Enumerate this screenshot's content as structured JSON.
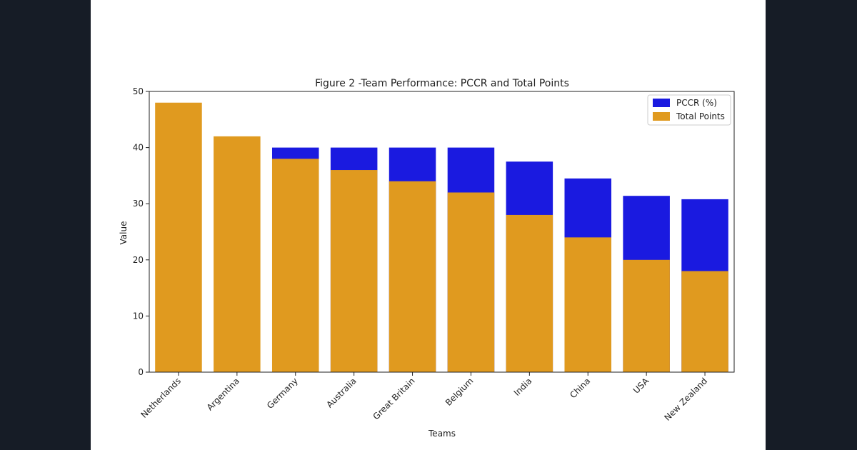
{
  "colors": {
    "page_background": "#161c26",
    "panel_background": "#ffffff",
    "pccr": "#1a1ae0",
    "total_points": "#e09a1f"
  },
  "chart_data": {
    "type": "bar",
    "title": "Figure 2 -Team Performance: PCCR and Total Points",
    "xlabel": "Teams",
    "ylabel": "Value",
    "ylim": [
      0,
      50
    ],
    "yticks": [
      0,
      10,
      20,
      30,
      40,
      50
    ],
    "categories": [
      "Netherlands",
      "Argentina",
      "Germany",
      "Australia",
      "Great Britain",
      "Belgium",
      "India",
      "China",
      "USA",
      "New Zealand"
    ],
    "series": [
      {
        "name": "PCCR (%)",
        "color": "#1a1ae0",
        "values": [
          null,
          null,
          40,
          40,
          40,
          40,
          37.5,
          34.5,
          31.4,
          30.8
        ]
      },
      {
        "name": "Total Points",
        "color": "#e09a1f",
        "values": [
          48,
          42,
          38,
          36,
          34,
          32,
          28,
          24,
          20,
          18
        ]
      }
    ],
    "legend_position": "top-right",
    "grid": false
  }
}
